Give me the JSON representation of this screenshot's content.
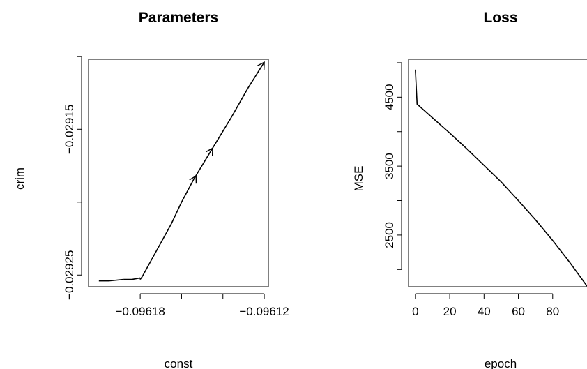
{
  "chart_data": [
    {
      "type": "line",
      "title": "Parameters",
      "xlabel": "const",
      "ylabel": "crim",
      "xlim": [
        -0.096205,
        -0.096118
      ],
      "ylim": [
        -0.029258,
        -0.029102
      ],
      "xticks": [
        -0.09618,
        -0.09612
      ],
      "xtick_labels": [
        "−0.09618",
        "−0.09612"
      ],
      "xticks_unlabeled": [
        -0.09616,
        -0.09614
      ],
      "yticks": [
        -0.02915,
        -0.02925
      ],
      "ytick_labels": [
        "−0.02915",
        "−0.02925"
      ],
      "yticks_unlabeled": [
        -0.0291,
        -0.0292
      ],
      "path": [
        {
          "x": -0.0962,
          "y": -0.029254
        },
        {
          "x": -0.096195,
          "y": -0.029254
        },
        {
          "x": -0.096188,
          "y": -0.029253
        },
        {
          "x": -0.096184,
          "y": -0.029253
        },
        {
          "x": -0.09618,
          "y": -0.029252
        },
        {
          "x": -0.09618,
          "y": -0.029253
        },
        {
          "x": -0.096179,
          "y": -0.029251
        },
        {
          "x": -0.096172,
          "y": -0.029233
        },
        {
          "x": -0.096165,
          "y": -0.029215
        },
        {
          "x": -0.09616,
          "y": -0.0292
        },
        {
          "x": -0.096154,
          "y": -0.029184
        },
        {
          "x": -0.096145,
          "y": -0.029163
        },
        {
          "x": -0.096136,
          "y": -0.029142
        },
        {
          "x": -0.096128,
          "y": -0.029122
        },
        {
          "x": -0.09612,
          "y": -0.029104
        }
      ],
      "arrowheads": [
        {
          "x": -0.096153,
          "y": -0.029182
        },
        {
          "x": -0.096145,
          "y": -0.029163
        },
        {
          "x": -0.09612,
          "y": -0.029104
        }
      ],
      "grid": false
    },
    {
      "type": "line",
      "title": "Loss",
      "xlabel": "epoch",
      "ylabel": "MSE",
      "xlim": [
        -4,
        100
      ],
      "ylim": [
        1750,
        5050
      ],
      "xticks": [
        0,
        20,
        40,
        60,
        80
      ],
      "xtick_labels": [
        "0",
        "20",
        "40",
        "60",
        "80"
      ],
      "yticks": [
        2500,
        3500,
        4500
      ],
      "ytick_labels": [
        "2500",
        "3500",
        "4500"
      ],
      "yticks_unlabeled": [
        2000,
        3000,
        4000,
        5000
      ],
      "x": [
        0,
        1,
        10,
        20,
        30,
        40,
        50,
        60,
        70,
        80,
        90,
        100
      ],
      "y": [
        4900,
        4400,
        4200,
        3980,
        3750,
        3510,
        3270,
        3000,
        2720,
        2420,
        2100,
        1760
      ],
      "grid": false
    }
  ]
}
